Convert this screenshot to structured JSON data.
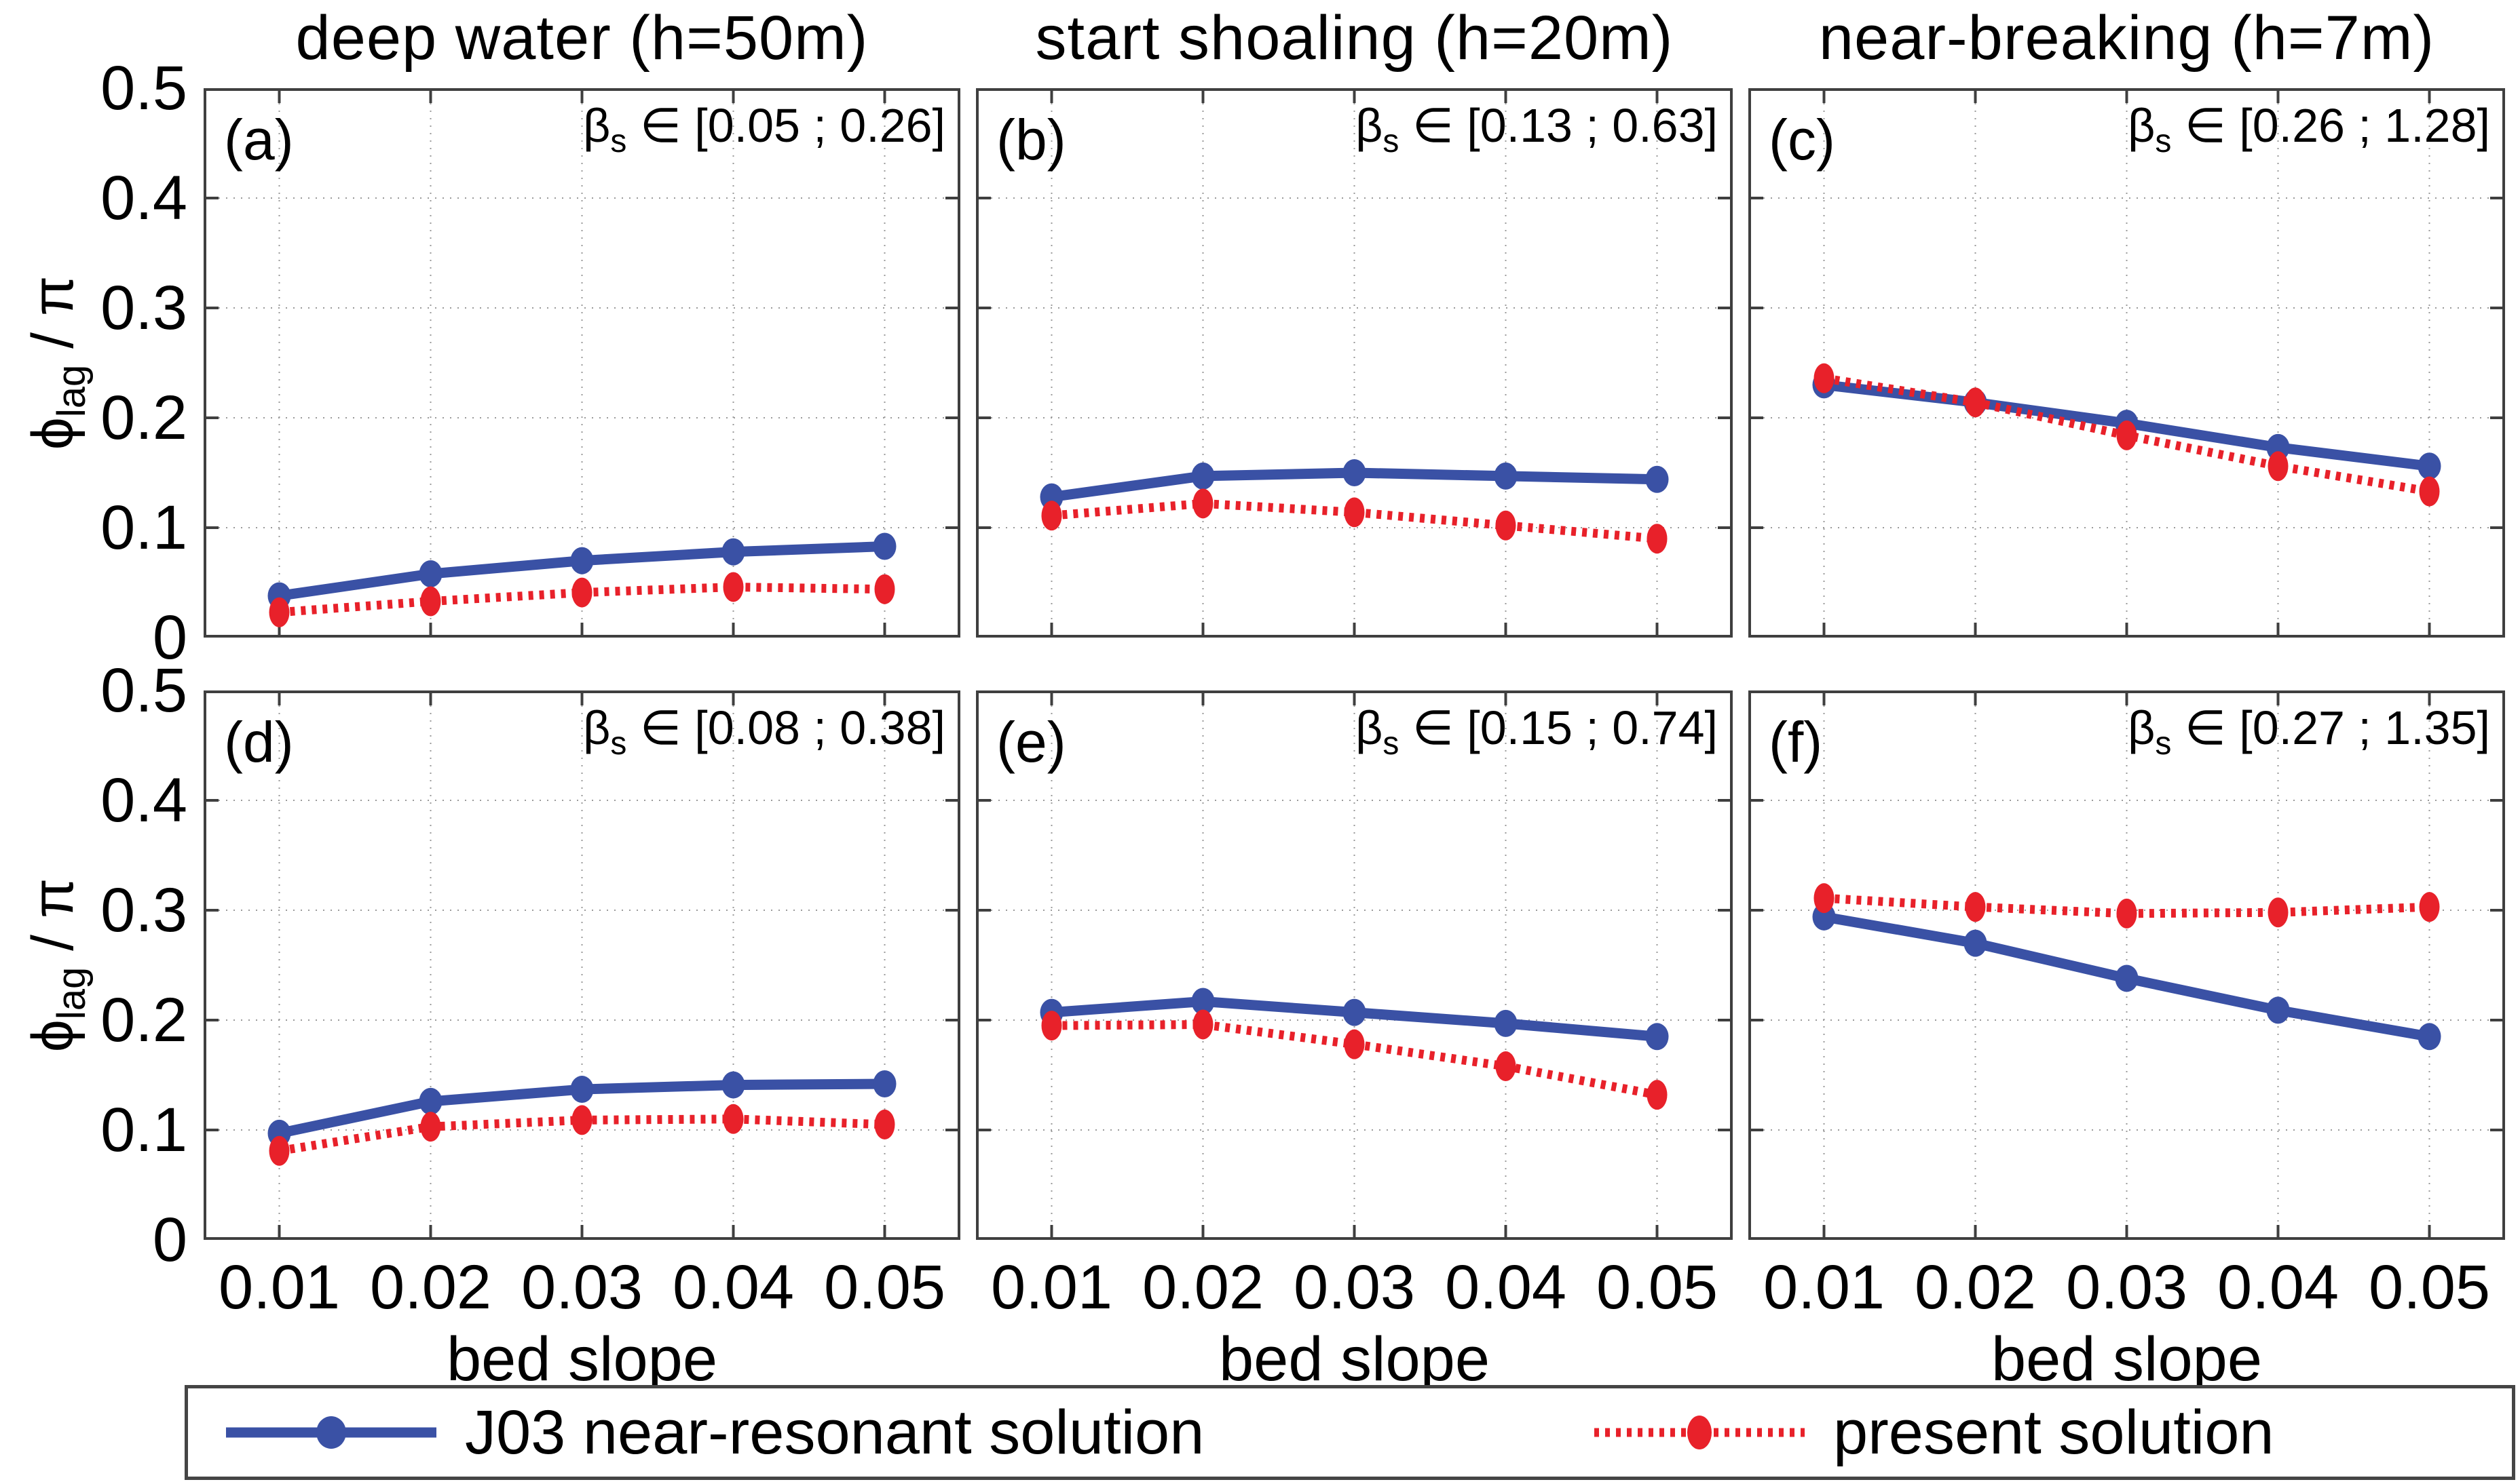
{
  "figure": {
    "ylabel_symbol": "ϕ",
    "ylabel_subscript": "lag",
    "ylabel_suffix": " / π",
    "y_ticks": [
      "0.5",
      "0.4",
      "0.3",
      "0.2",
      "0.1",
      "0"
    ],
    "x_ticks": [
      "0.01",
      "0.02",
      "0.03",
      "0.04",
      "0.05"
    ],
    "grid": true,
    "legend_position": "bottom"
  },
  "colors": {
    "j03": "#3A51A5",
    "present": "#E8212A",
    "grid": "#9a9a9a",
    "axis": "#3f3f3f",
    "text": "#000000"
  },
  "legend": {
    "items": [
      {
        "label": "J03 near-resonant solution",
        "color": "#3A51A5",
        "style": "solid"
      },
      {
        "label": "present solution",
        "color": "#E8212A",
        "style": "dotted"
      }
    ]
  },
  "chart_data": [
    {
      "type": "line",
      "panel_label": "(a)",
      "title": "deep water (h=50m)",
      "beta_symbol": "β",
      "beta_subscript": "s",
      "beta_range": " ∈ [0.05 ; 0.26]",
      "xlabel": "bed slope",
      "ylabel": "ϕ_lag / π",
      "x": [
        0.01,
        0.02,
        0.03,
        0.04,
        0.05
      ],
      "xlim": [
        0.005,
        0.055
      ],
      "ylim": [
        0,
        0.5
      ],
      "series": [
        {
          "name": "J03 near-resonant solution",
          "values": [
            0.038,
            0.058,
            0.07,
            0.078,
            0.083
          ]
        },
        {
          "name": "present solution",
          "values": [
            0.023,
            0.033,
            0.041,
            0.046,
            0.044
          ]
        }
      ]
    },
    {
      "type": "line",
      "panel_label": "(b)",
      "title": "start shoaling (h=20m)",
      "beta_symbol": "β",
      "beta_subscript": "s",
      "beta_range": " ∈ [0.13 ; 0.63]",
      "xlabel": "bed slope",
      "ylabel": "ϕ_lag / π",
      "x": [
        0.01,
        0.02,
        0.03,
        0.04,
        0.05
      ],
      "xlim": [
        0.005,
        0.055
      ],
      "ylim": [
        0,
        0.5
      ],
      "series": [
        {
          "name": "J03 near-resonant solution",
          "values": [
            0.128,
            0.147,
            0.15,
            0.147,
            0.144
          ]
        },
        {
          "name": "present solution",
          "values": [
            0.111,
            0.122,
            0.114,
            0.102,
            0.09
          ]
        }
      ]
    },
    {
      "type": "line",
      "panel_label": "(c)",
      "title": "near-breaking (h=7m)",
      "beta_symbol": "β",
      "beta_subscript": "s",
      "beta_range": " ∈ [0.26 ; 1.28]",
      "xlabel": "bed slope",
      "ylabel": "ϕ_lag / π",
      "x": [
        0.01,
        0.02,
        0.03,
        0.04,
        0.05
      ],
      "xlim": [
        0.005,
        0.055
      ],
      "ylim": [
        0,
        0.5
      ],
      "series": [
        {
          "name": "J03 near-resonant solution",
          "values": [
            0.23,
            0.214,
            0.195,
            0.173,
            0.156
          ]
        },
        {
          "name": "present solution",
          "values": [
            0.236,
            0.214,
            0.184,
            0.156,
            0.133
          ]
        }
      ]
    },
    {
      "type": "line",
      "panel_label": "(d)",
      "beta_symbol": "β",
      "beta_subscript": "s",
      "beta_range": " ∈ [0.08 ; 0.38]",
      "xlabel": "bed slope",
      "ylabel": "ϕ_lag / π",
      "x": [
        0.01,
        0.02,
        0.03,
        0.04,
        0.05
      ],
      "xlim": [
        0.005,
        0.055
      ],
      "ylim": [
        0,
        0.5
      ],
      "series": [
        {
          "name": "J03 near-resonant solution",
          "values": [
            0.097,
            0.126,
            0.137,
            0.141,
            0.142
          ]
        },
        {
          "name": "present solution",
          "values": [
            0.081,
            0.103,
            0.109,
            0.11,
            0.105
          ]
        }
      ]
    },
    {
      "type": "line",
      "panel_label": "(e)",
      "beta_symbol": "β",
      "beta_subscript": "s",
      "beta_range": " ∈ [0.15 ; 0.74]",
      "xlabel": "bed slope",
      "ylabel": "ϕ_lag / π",
      "x": [
        0.01,
        0.02,
        0.03,
        0.04,
        0.05
      ],
      "xlim": [
        0.005,
        0.055
      ],
      "ylim": [
        0,
        0.5
      ],
      "series": [
        {
          "name": "J03 near-resonant solution",
          "values": [
            0.207,
            0.217,
            0.207,
            0.197,
            0.185
          ]
        },
        {
          "name": "present solution",
          "values": [
            0.195,
            0.196,
            0.178,
            0.158,
            0.132
          ]
        }
      ]
    },
    {
      "type": "line",
      "panel_label": "(f)",
      "beta_symbol": "β",
      "beta_subscript": "s",
      "beta_range": " ∈ [0.27 ; 1.35]",
      "xlabel": "bed slope",
      "ylabel": "ϕ_lag / π",
      "x": [
        0.01,
        0.02,
        0.03,
        0.04,
        0.05
      ],
      "xlim": [
        0.005,
        0.055
      ],
      "ylim": [
        0,
        0.5
      ],
      "series": [
        {
          "name": "J03 near-resonant solution",
          "values": [
            0.294,
            0.27,
            0.238,
            0.209,
            0.185
          ]
        },
        {
          "name": "present solution",
          "values": [
            0.311,
            0.303,
            0.297,
            0.298,
            0.303
          ]
        }
      ]
    }
  ]
}
